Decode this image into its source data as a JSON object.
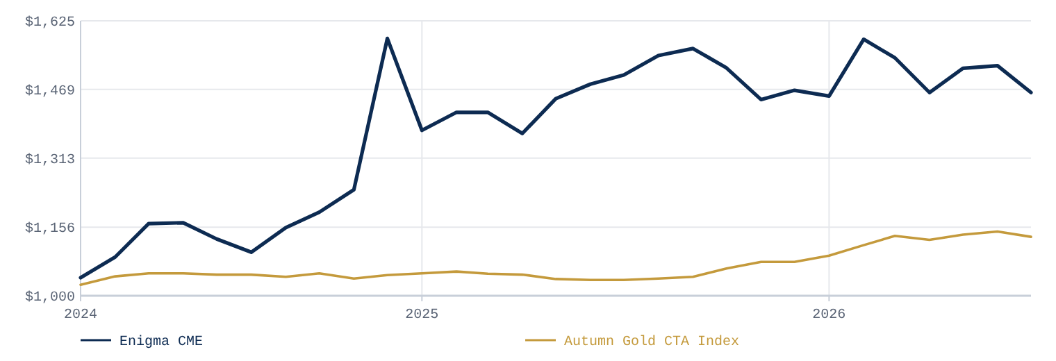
{
  "chart_data": {
    "type": "line",
    "x": [
      "2024-03",
      "2024-04",
      "2024-05",
      "2024-06",
      "2024-07",
      "2024-08",
      "2024-09",
      "2024-10",
      "2024-11",
      "2024-12",
      "2025-01",
      "2025-02",
      "2025-03",
      "2025-04",
      "2025-05",
      "2025-06",
      "2025-07",
      "2025-08",
      "2025-09",
      "2025-10",
      "2025-11",
      "2025-12",
      "2026-01",
      "2026-02",
      "2026-03",
      "2026-04",
      "2026-05",
      "2026-06",
      "2026-07"
    ],
    "series": [
      {
        "name": "Enigma CME",
        "color": "#0d2b52",
        "values": [
          1041,
          1088,
          1164,
          1166,
          1129,
          1099,
          1155,
          1190,
          1241,
          1585,
          1376,
          1417,
          1417,
          1369,
          1448,
          1481,
          1502,
          1546,
          1562,
          1518,
          1446,
          1467,
          1454,
          1583,
          1541,
          1462,
          1517,
          1523,
          1462
        ]
      },
      {
        "name": "Autumn Gold CTA Index",
        "color": "#c49a3c",
        "values": [
          1025,
          1044,
          1051,
          1051,
          1048,
          1048,
          1043,
          1051,
          1039,
          1047,
          1051,
          1055,
          1050,
          1048,
          1038,
          1036,
          1036,
          1039,
          1043,
          1062,
          1077,
          1077,
          1091,
          1115,
          1136,
          1127,
          1139,
          1146,
          1134
        ]
      }
    ],
    "xlim": [
      "2024-03",
      "2026-07"
    ],
    "xticks": [
      {
        "value": "2024-03",
        "label": "2024"
      },
      {
        "value": "2025-01",
        "label": "2025"
      },
      {
        "value": "2026-01",
        "label": "2026"
      }
    ],
    "ylim": [
      1000,
      1625
    ],
    "yticks": [
      {
        "value": 1000,
        "label": "$1,000"
      },
      {
        "value": 1156,
        "label": "$1,156"
      },
      {
        "value": 1313,
        "label": "$1,313"
      },
      {
        "value": 1469,
        "label": "$1,469"
      },
      {
        "value": 1625,
        "label": "$1,625"
      }
    ],
    "grid": true,
    "legend": "bottom",
    "marker": "none",
    "line_style": "solid"
  }
}
